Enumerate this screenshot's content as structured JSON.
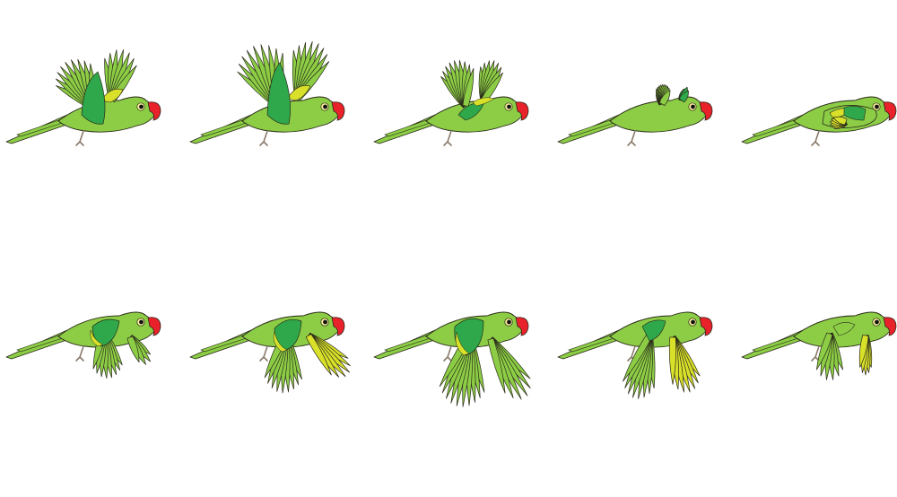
{
  "sprite_sheet": {
    "rows": 2,
    "columns": 5,
    "colors": {
      "body": "#8CCD45",
      "body_dark": "#2EA84A",
      "accent_yellow": "#D8E02A",
      "beak": "#E8212A",
      "outline": "#2A2A1A",
      "eye": "#111111",
      "eye_ring": "#FFF3A0",
      "legs": "#8A7A6A",
      "background": "#FFFFFF"
    },
    "frames": [
      {
        "pose": "wings-up-full"
      },
      {
        "pose": "wings-up-high"
      },
      {
        "pose": "wings-up-mid"
      },
      {
        "pose": "wings-folded-top"
      },
      {
        "pose": "wings-tucked"
      },
      {
        "pose": "wings-down-start"
      },
      {
        "pose": "wings-down-mid"
      },
      {
        "pose": "wings-down-full"
      },
      {
        "pose": "wings-down-back"
      },
      {
        "pose": "wings-down-end"
      }
    ]
  }
}
